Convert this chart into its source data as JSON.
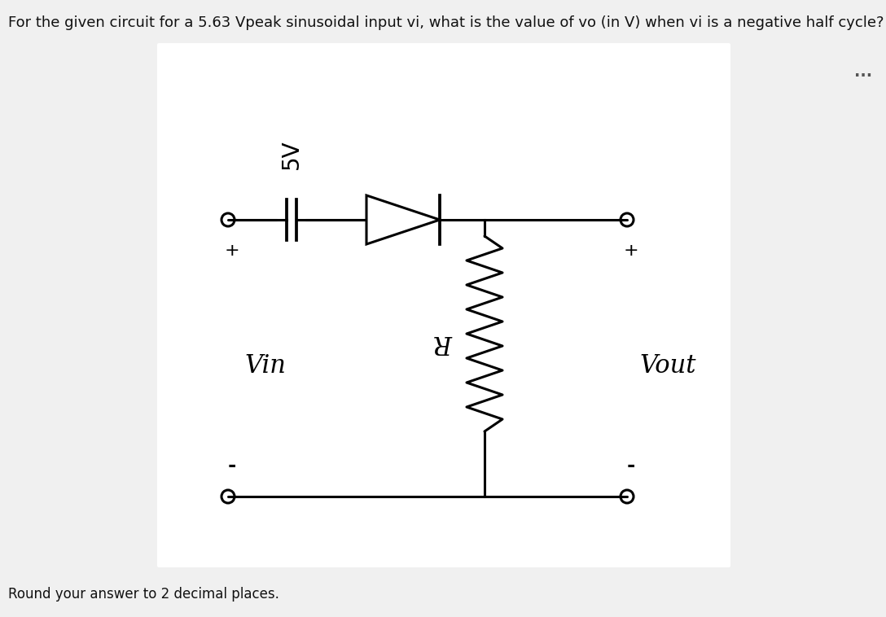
{
  "background_color": "#f0f0f0",
  "panel_color": "#ffffff",
  "title_text": "For the given circuit for a 5.63 Vpeak sinusoidal input vi, what is the value of vo (in V) when vi is a negative half cycle?",
  "footer_text": "Round your answer to 2 decimal places.",
  "title_fontsize": 13,
  "footer_fontsize": 12,
  "label_5V": "5V",
  "label_Vin": "Vin",
  "label_Vout": "Vout",
  "label_R": "R",
  "plus_sign": "+",
  "minus_sign": "-",
  "dots": "...",
  "line_color": "#000000",
  "lw": 2.2
}
